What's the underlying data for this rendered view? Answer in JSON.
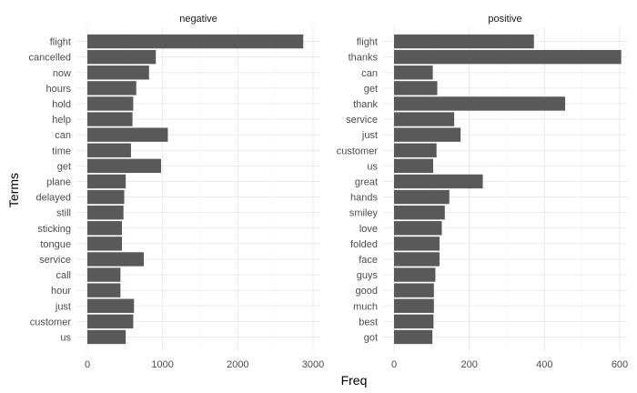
{
  "chart_data": {
    "type": "bar",
    "orientation": "horizontal",
    "xlabel": "Freq",
    "ylabel": "Terms",
    "bar_color": "#595959",
    "grid": true,
    "facets": [
      {
        "title": "negative",
        "xlim": [
          0,
          3000
        ],
        "xticks": [
          0,
          1000,
          2000,
          3000
        ],
        "categories": [
          "flight",
          "cancelled",
          "now",
          "hours",
          "hold",
          "help",
          "can",
          "time",
          "get",
          "plane",
          "delayed",
          "still",
          "sticking",
          "tongue",
          "service",
          "call",
          "hour",
          "just",
          "customer",
          "us"
        ],
        "values": [
          2870,
          910,
          820,
          650,
          610,
          600,
          1070,
          580,
          980,
          510,
          490,
          480,
          460,
          460,
          750,
          440,
          440,
          620,
          610,
          510
        ]
      },
      {
        "title": "positive",
        "xlim": [
          0,
          600
        ],
        "xticks": [
          0,
          200,
          400,
          600
        ],
        "categories": [
          "flight",
          "thanks",
          "can",
          "get",
          "thank",
          "service",
          "just",
          "customer",
          "us",
          "great",
          "hands",
          "smiley",
          "love",
          "folded",
          "face",
          "guys",
          "good",
          "much",
          "best",
          "got"
        ],
        "values": [
          372,
          604,
          103,
          115,
          455,
          160,
          177,
          113,
          104,
          236,
          147,
          135,
          127,
          121,
          121,
          110,
          106,
          106,
          105,
          102
        ]
      }
    ]
  }
}
